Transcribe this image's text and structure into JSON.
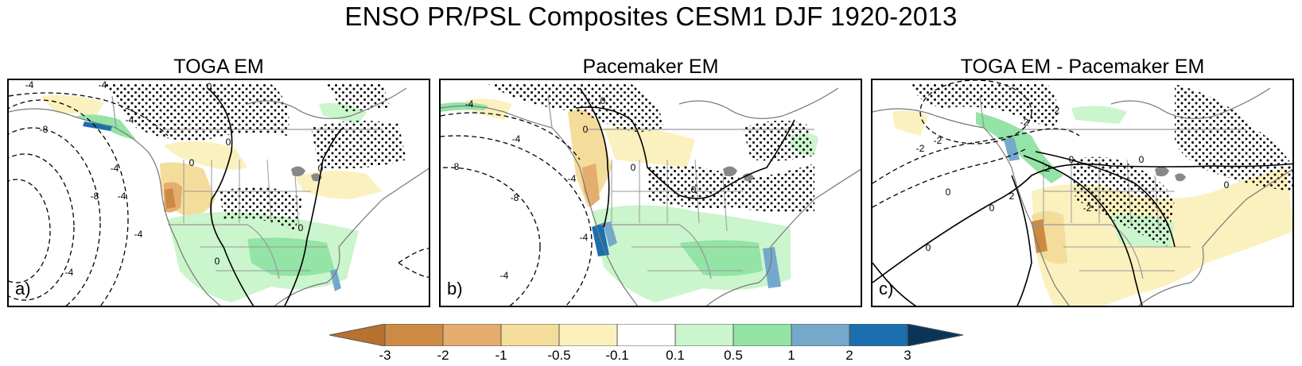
{
  "title": "ENSO PR/PSL Composites CESM1 DJF 1920-2013",
  "panels": [
    {
      "title": "TOGA EM",
      "letter": "a)",
      "contour_labels": [
        "-4",
        "-4",
        "-8",
        "-4",
        "-4",
        "0",
        "-4",
        "-8",
        "-4",
        "0",
        "0",
        "0",
        "-4",
        "0",
        "0"
      ]
    },
    {
      "title": "Pacemaker EM",
      "letter": "b)",
      "contour_labels": [
        "-4",
        "-8",
        "-4",
        "-8",
        "-4",
        "-4",
        "0",
        "0",
        "0",
        "0",
        "-4"
      ]
    },
    {
      "title": "TOGA EM - Pacemaker EM",
      "letter": "c)",
      "contour_labels": [
        "-2",
        "-2",
        "-2",
        "2",
        "2",
        "0",
        "0",
        "0",
        "2",
        "-2",
        "0",
        "0",
        "0"
      ]
    }
  ],
  "colorbar": {
    "ticks": [
      "-3",
      "-2",
      "-1",
      "-0.5",
      "-0.1",
      "0.1",
      "0.5",
      "1",
      "2",
      "3"
    ],
    "colors": [
      "#b7722e",
      "#cd8a44",
      "#e5ad6e",
      "#f4dc9b",
      "#fbf1bf",
      "#ffffff",
      "#cbf5cc",
      "#93e4a6",
      "#74a9cc",
      "#1b6fae",
      "#0a3558"
    ]
  }
}
